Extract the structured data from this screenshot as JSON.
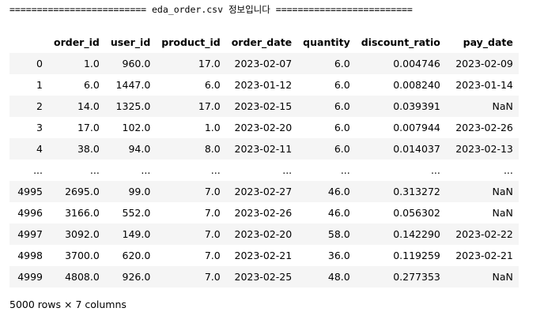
{
  "output": {
    "banner": "========================= eda_order.csv 정보입니다 =========================",
    "columns": [
      "",
      "order_id",
      "user_id",
      "product_id",
      "order_date",
      "quantity",
      "discount_ratio",
      "pay_date"
    ],
    "rows": [
      [
        "0",
        "1.0",
        "960.0",
        "17.0",
        "2023-02-07",
        "6.0",
        "0.004746",
        "2023-02-09"
      ],
      [
        "1",
        "6.0",
        "1447.0",
        "6.0",
        "2023-01-12",
        "6.0",
        "0.008240",
        "2023-01-14"
      ],
      [
        "2",
        "14.0",
        "1325.0",
        "17.0",
        "2023-02-15",
        "6.0",
        "0.039391",
        "NaN"
      ],
      [
        "3",
        "17.0",
        "102.0",
        "1.0",
        "2023-02-20",
        "6.0",
        "0.007944",
        "2023-02-26"
      ],
      [
        "4",
        "38.0",
        "94.0",
        "8.0",
        "2023-02-11",
        "6.0",
        "0.014037",
        "2023-02-13"
      ],
      [
        "...",
        "...",
        "...",
        "...",
        "...",
        "...",
        "...",
        "..."
      ],
      [
        "4995",
        "2695.0",
        "99.0",
        "7.0",
        "2023-02-27",
        "46.0",
        "0.313272",
        "NaN"
      ],
      [
        "4996",
        "3166.0",
        "552.0",
        "7.0",
        "2023-02-26",
        "46.0",
        "0.056302",
        "NaN"
      ],
      [
        "4997",
        "3092.0",
        "149.0",
        "7.0",
        "2023-02-20",
        "58.0",
        "0.142290",
        "2023-02-22"
      ],
      [
        "4998",
        "3700.0",
        "620.0",
        "7.0",
        "2023-02-21",
        "36.0",
        "0.119259",
        "2023-02-21"
      ],
      [
        "4999",
        "4808.0",
        "926.0",
        "7.0",
        "2023-02-25",
        "48.0",
        "0.277353",
        "NaN"
      ]
    ],
    "shape": "5000 rows × 7 columns"
  }
}
